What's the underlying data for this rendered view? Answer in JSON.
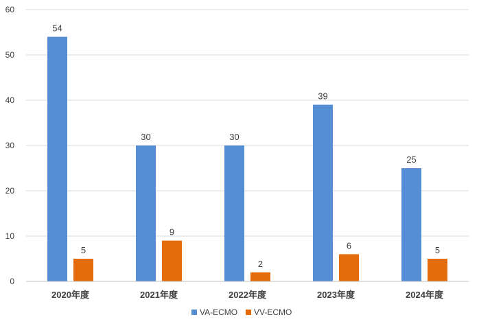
{
  "chart_data": {
    "type": "bar",
    "title": "",
    "xlabel": "",
    "ylabel": "",
    "categories": [
      "2020年度",
      "2021年度",
      "2022年度",
      "2023年度",
      "2024年度"
    ],
    "series": [
      {
        "name": "VA-ECMO",
        "values": [
          54,
          30,
          30,
          39,
          25
        ],
        "color": "#558ed5"
      },
      {
        "name": "VV-ECMO",
        "values": [
          5,
          9,
          2,
          6,
          5
        ],
        "color": "#e46c0a"
      }
    ],
    "ylim": [
      0,
      60
    ],
    "yticks": [
      0,
      10,
      20,
      30,
      40,
      50,
      60
    ],
    "grid": true,
    "legend": "bottom",
    "data_labels": true
  }
}
